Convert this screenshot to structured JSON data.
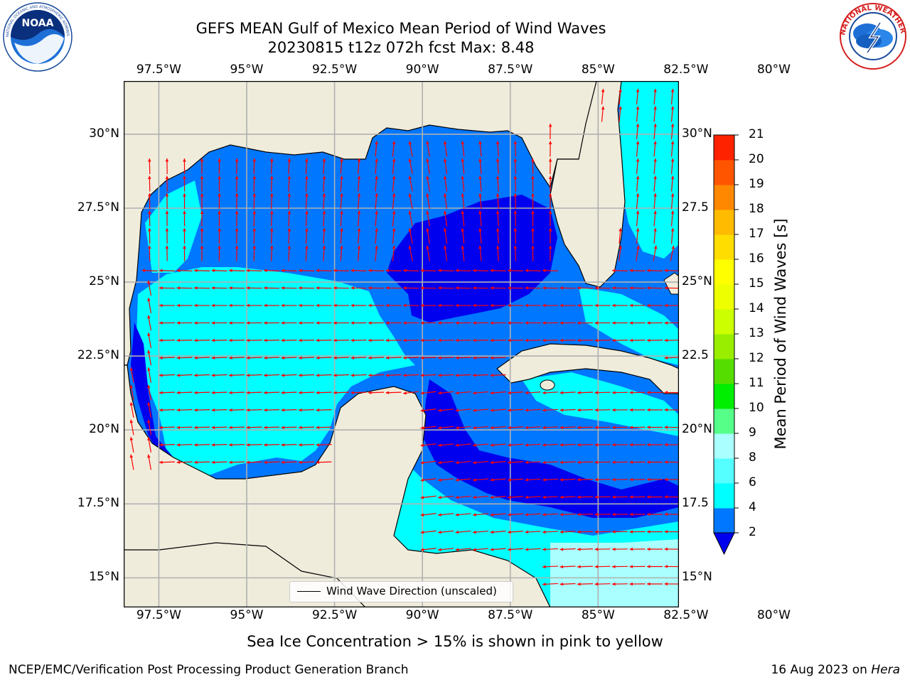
{
  "title": {
    "line1": "GEFS MEAN Gulf of Mexico Mean Period of Wind Waves",
    "line2": "20230815 t12z 072h fcst   Max: 8.48"
  },
  "logos": {
    "left": {
      "name": "noaa-logo",
      "text": "NOAA",
      "ring_text": "NATIONAL OCEANIC AND ATMOSPHERIC ADMINISTRATION · U.S. DEPARTMENT OF COMMERCE"
    },
    "right": {
      "name": "nws-logo",
      "ring_text": "NATIONAL WEATHER SERVICE"
    }
  },
  "map": {
    "extent": {
      "lon": [
        -98.5,
        -82.7
      ],
      "lat": [
        14.0,
        31.8
      ]
    },
    "lon_ticks": [
      "97.5°W",
      "95°W",
      "92.5°W",
      "90°W",
      "87.5°W",
      "85°W",
      "82.5°W",
      "80°W"
    ],
    "lon_values": [
      -97.5,
      -95,
      -92.5,
      -90,
      -87.5,
      -85,
      -82.5,
      -80
    ],
    "lat_ticks_left": [
      "15°N",
      "17.5°N",
      "20°N",
      "22.5°N",
      "25°N",
      "27.5°N",
      "30°N"
    ],
    "lat_ticks_right": [
      "15°N",
      "17.5",
      "20°N",
      "22.5",
      "25°N",
      "27.5",
      "30°N"
    ],
    "lat_values": [
      15,
      17.5,
      20,
      22.5,
      25,
      27.5,
      30
    ],
    "legend_label": "Wind Wave Direction (unscaled)",
    "colors": {
      "land": "#efecdc",
      "period_2_4": "#0077ff",
      "period_lt2": "#0000ee",
      "period_4_6": "#00ffff",
      "arrow": "#ff0000",
      "grid": "#b0b0b0"
    }
  },
  "colorbar": {
    "label": "Mean Period of Wind Waves [s]",
    "ticks": [
      "2",
      "4",
      "6",
      "8",
      "9",
      "10",
      "11",
      "12",
      "13",
      "14",
      "15",
      "16",
      "17",
      "18",
      "19",
      "20",
      "21"
    ],
    "colors": [
      "#0077ff",
      "#00ffff",
      "#55ffff",
      "#aaffff",
      "#55ff88",
      "#00ee00",
      "#55dd00",
      "#99ee00",
      "#ccff00",
      "#eeff00",
      "#ffff00",
      "#ffdd00",
      "#ffbb00",
      "#ff8800",
      "#ff5500",
      "#ff2200"
    ],
    "extend_low_color": "#0000ee"
  },
  "caption": "Sea Ice Concentration > 15% is shown in pink to yellow",
  "footer": {
    "left": "NCEP/EMC/Verification Post Processing Product Generation Branch",
    "right_date": "16 Aug 2023 on",
    "right_host": "Hera"
  }
}
